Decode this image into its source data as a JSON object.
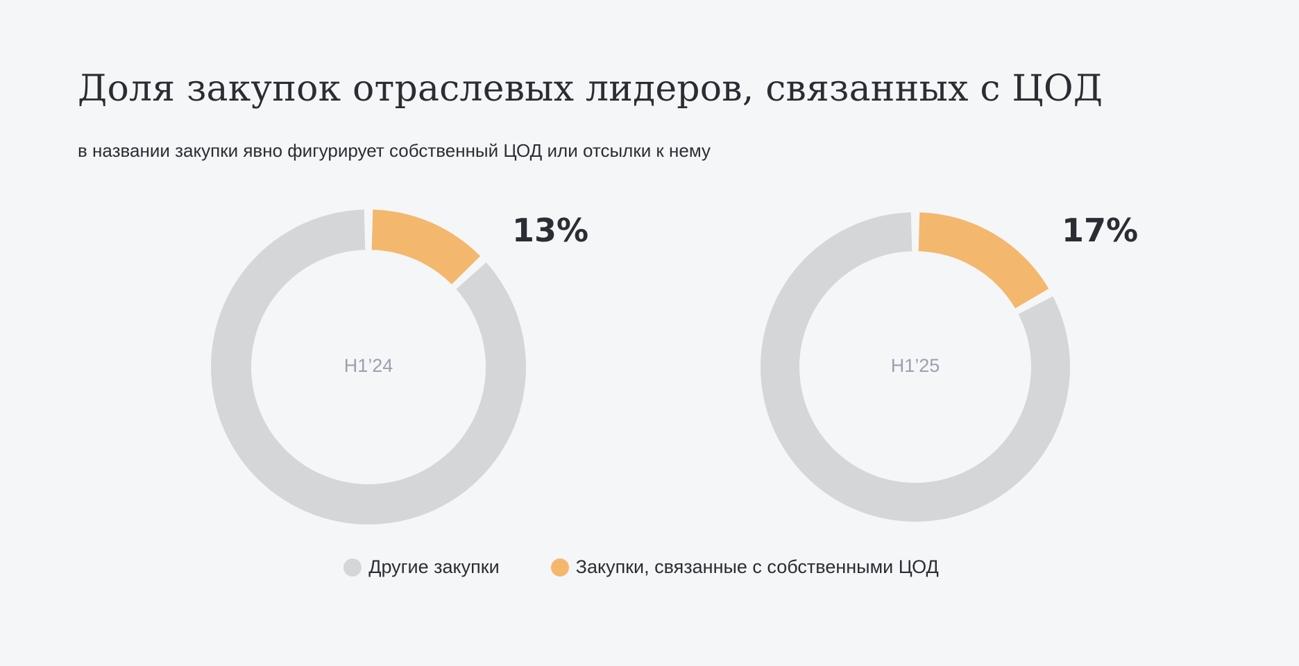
{
  "chart_data": {
    "type": "pie",
    "title": "Доля закупок отраслевых лидеров, связанных с ЦОД",
    "subtitle": "в названии закупки явно фигурирует собственный ЦОД или отсылки к нему",
    "legend": [
      {
        "label": "Другие закупки",
        "color": "#d5d6d8"
      },
      {
        "label": "Закупки, связанные с собственными ЦОД",
        "color": "#f4b76e"
      }
    ],
    "charts": [
      {
        "label": "H1’24",
        "highlight_value": 13,
        "highlight_text": "13%"
      },
      {
        "label": "H1’25",
        "highlight_value": 17,
        "highlight_text": "17%"
      }
    ]
  }
}
